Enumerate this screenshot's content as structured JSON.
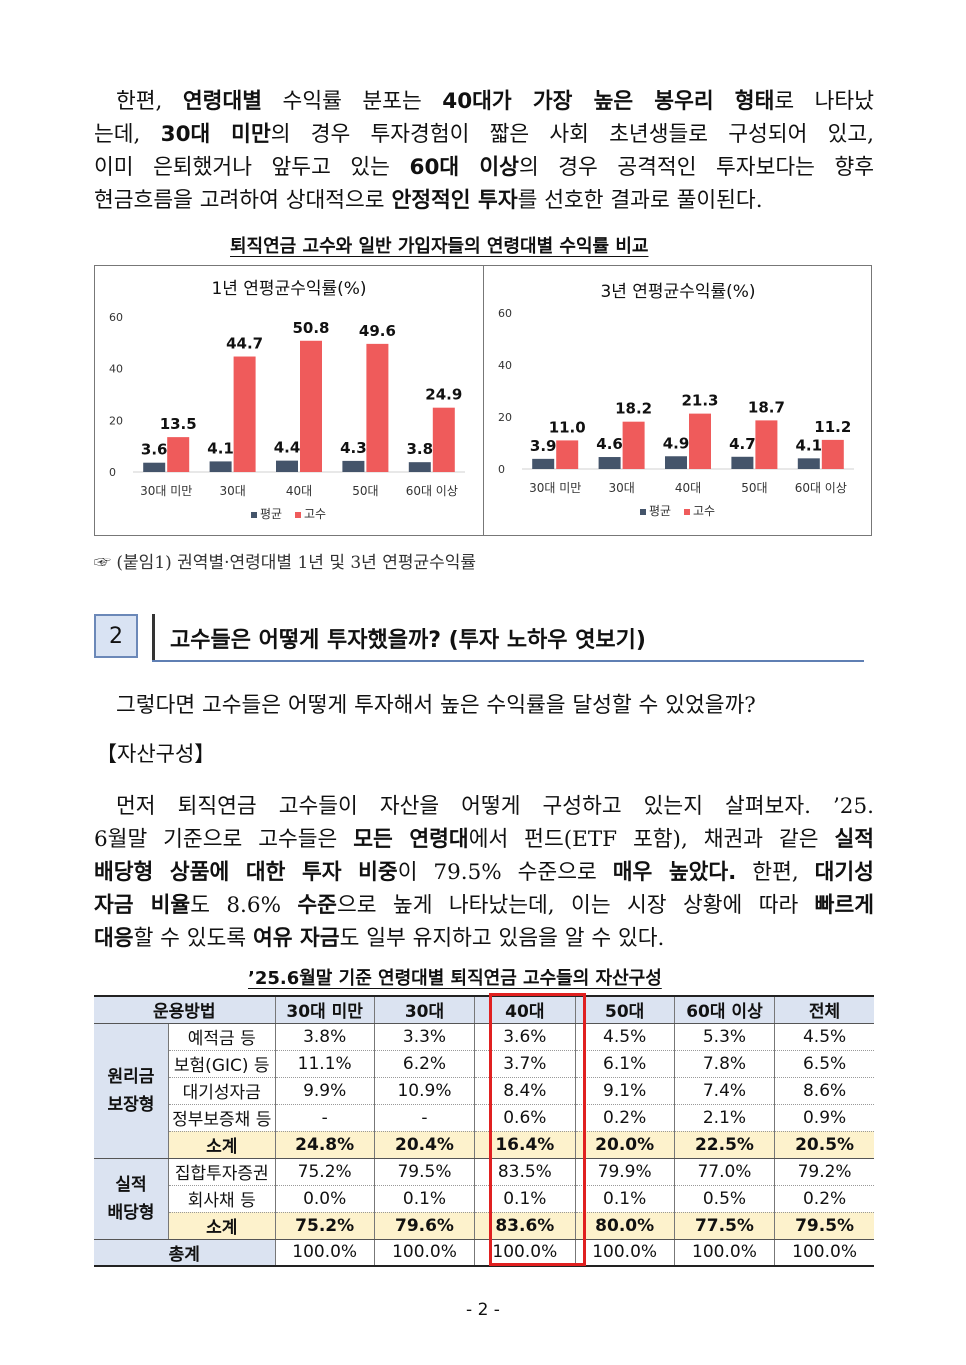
{
  "intro": {
    "lines": [
      [
        {
          "t": "한편, "
        },
        {
          "t": "연령대별",
          "b": true
        },
        {
          "t": " 수익률 분포는 "
        },
        {
          "t": "40대가 가장 높은 봉우리 형태",
          "b": true
        },
        {
          "t": "로 나타났"
        }
      ],
      [
        {
          "t": "는데, "
        },
        {
          "t": "30대 미만",
          "b": true
        },
        {
          "t": "의 경우 투자경험이 짧은 사회 초년생들로 구성되어 있고,"
        }
      ],
      [
        {
          "t": "이미 은퇴했거나 앞두고 있는 "
        },
        {
          "t": "60대 이상",
          "b": true
        },
        {
          "t": "의 경우 공격적인 투자보다는 향후"
        }
      ],
      [
        {
          "t": "현금흐름을 고려하여 상대적으로 "
        },
        {
          "t": "안정적인 투자",
          "b": true
        },
        {
          "t": "를 선호한 결과로 풀이된다."
        }
      ]
    ]
  },
  "chart_caption": "퇴직연금 고수와 일반 가입자들의 연령대별 수익률 비교",
  "chart_data": [
    {
      "type": "bar",
      "title": "1년 연평균수익률(%)",
      "categories": [
        "30대 미만",
        "30대",
        "40대",
        "50대",
        "60대 이상"
      ],
      "series": [
        {
          "name": "평균",
          "values": [
            3.6,
            4.1,
            4.4,
            4.3,
            3.8
          ],
          "color": "#44546a"
        },
        {
          "name": "고수",
          "values": [
            13.5,
            44.7,
            50.8,
            49.6,
            24.9
          ],
          "color": "#ef5b5b"
        }
      ],
      "yticks": [
        0,
        20,
        40,
        60
      ],
      "ylim": [
        0,
        60
      ],
      "legend": "bottom"
    },
    {
      "type": "bar",
      "title": "3년 연평균수익률(%)",
      "categories": [
        "30대 미만",
        "30대",
        "40대",
        "50대",
        "60대 이상"
      ],
      "series": [
        {
          "name": "평균",
          "values": [
            3.9,
            4.6,
            4.9,
            4.7,
            4.1
          ],
          "color": "#44546a"
        },
        {
          "name": "고수",
          "values": [
            11.0,
            18.2,
            21.3,
            18.7,
            11.2
          ],
          "color": "#ef5b5b"
        }
      ],
      "yticks": [
        0,
        20,
        40,
        60
      ],
      "ylim": [
        0,
        60
      ],
      "legend": "bottom"
    }
  ],
  "note": "☞ (붙임1) 권역별·연령대별 1년 및 3년 연평균수익률",
  "section": {
    "number": "2",
    "title": "고수들은 어떻게 투자했을까? (투자 노하우 엿보기)"
  },
  "question": {
    "lines": [
      [
        {
          "t": "그렇다면 고수들은 어떻게 투자해서 높은 수익률을 달성할 수 있었을까?"
        }
      ]
    ]
  },
  "subhead": "【자산구성】",
  "body2": {
    "lines": [
      [
        {
          "t": "먼저 퇴직연금 고수들이 자산을 어떻게 구성하고 있는지 살펴보자. ’25."
        }
      ],
      [
        {
          "t": "6월말 기준으로 고수들은 "
        },
        {
          "t": "모든 연령대",
          "b": true
        },
        {
          "t": "에서 펀드(ETF 포함), 채권과 같은 "
        },
        {
          "t": "실적",
          "b": true
        }
      ],
      [
        {
          "t": "배당형 상품에 대한 투자 비중",
          "b": true
        },
        {
          "t": "이 79.5% 수준으로 "
        },
        {
          "t": "매우 높았다.",
          "b": true
        },
        {
          "t": " 한편, "
        },
        {
          "t": "대기성",
          "b": true
        }
      ],
      [
        {
          "t": "자금 비율",
          "b": true
        },
        {
          "t": "도 8.6% "
        },
        {
          "t": "수준",
          "b": true
        },
        {
          "t": "으로 높게 나타났는데, 이는 시장 상황에 따라 "
        },
        {
          "t": "빠르게",
          "b": true
        }
      ],
      [
        {
          "t": "대응",
          "b": true
        },
        {
          "t": "할 수 있도록 "
        },
        {
          "t": "여유 자금",
          "b": true
        },
        {
          "t": "도 일부 유지하고 있음을 알 수 있다."
        }
      ]
    ]
  },
  "table_caption": "’25.6월말 기준 연령대별 퇴직연금 고수들의 자산구성",
  "table": {
    "headers": [
      "운용방법",
      "30대 미만",
      "30대",
      "40대",
      "50대",
      "60대 이상",
      "전체"
    ],
    "group1": "원리금 보장형",
    "group2": "실적 배당형",
    "rows1": [
      {
        "label": "예적금 등",
        "values": [
          "3.8%",
          "3.3%",
          "3.6%",
          "4.5%",
          "5.3%",
          "4.5%"
        ]
      },
      {
        "label": "보험(GIC) 등",
        "values": [
          "11.1%",
          "6.2%",
          "3.7%",
          "6.1%",
          "7.8%",
          "6.5%"
        ]
      },
      {
        "label": "대기성자금",
        "values": [
          "9.9%",
          "10.9%",
          "8.4%",
          "9.1%",
          "7.4%",
          "8.6%"
        ]
      },
      {
        "label": "정부보증채 등",
        "values": [
          "-",
          "-",
          "0.6%",
          "0.2%",
          "2.1%",
          "0.9%"
        ]
      }
    ],
    "subtotal1": {
      "label": "소계",
      "values": [
        "24.8%",
        "20.4%",
        "16.4%",
        "20.0%",
        "22.5%",
        "20.5%"
      ]
    },
    "rows2": [
      {
        "label": "집합투자증권",
        "values": [
          "75.2%",
          "79.5%",
          "83.5%",
          "79.9%",
          "77.0%",
          "79.2%"
        ]
      },
      {
        "label": "회사채 등",
        "values": [
          "0.0%",
          "0.1%",
          "0.1%",
          "0.1%",
          "0.5%",
          "0.2%"
        ]
      }
    ],
    "subtotal2": {
      "label": "소계",
      "values": [
        "75.2%",
        "79.6%",
        "83.6%",
        "80.0%",
        "77.5%",
        "79.5%"
      ]
    },
    "total": {
      "label": "총계",
      "values": [
        "100.0%",
        "100.0%",
        "100.0%",
        "100.0%",
        "100.0%",
        "100.0%"
      ]
    }
  },
  "page_number": "- 2 -"
}
